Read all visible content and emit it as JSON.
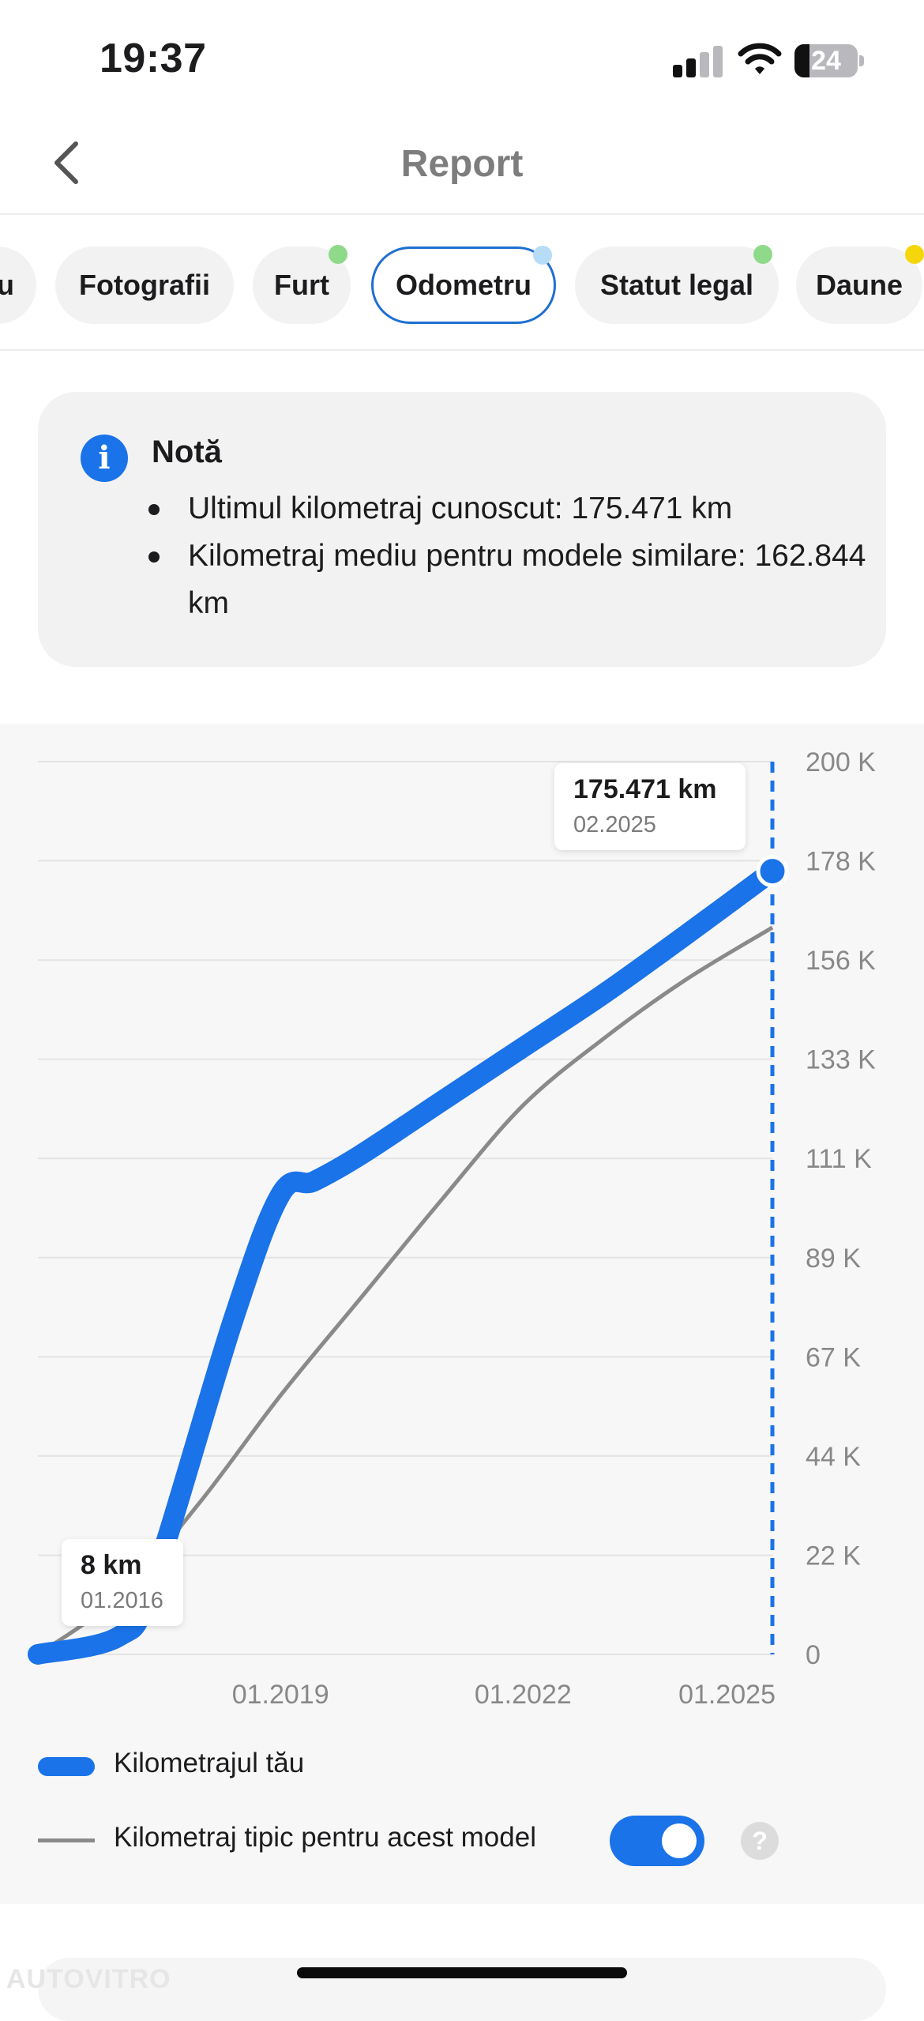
{
  "status_bar": {
    "time": "19:37",
    "battery_level": "24"
  },
  "nav": {
    "title": "Report",
    "back_icon": "chevron-left-icon"
  },
  "tabs": [
    {
      "label": "u",
      "dot_color": ""
    },
    {
      "label": "Fotografii",
      "dot_color": ""
    },
    {
      "label": "Furt",
      "dot_color": "#8fd98a"
    },
    {
      "label": "Odometru",
      "dot_color": "#b7dcf7",
      "active": true
    },
    {
      "label": "Statut legal",
      "dot_color": "#8fd98a"
    },
    {
      "label": "Daune",
      "dot_color": "#f5d60a"
    }
  ],
  "note": {
    "icon": "info-icon",
    "title": "Notă",
    "items": [
      "Ultimul kilometraj cunoscut: 175.471 km",
      "Kilometraj mediu pentru modele similare: 162.844 km"
    ]
  },
  "chart_data": {
    "type": "line",
    "x_ticks": [
      "01.2019",
      "01.2022",
      "01.2025"
    ],
    "y_ticks": [
      "0",
      "22 K",
      "44 K",
      "67 K",
      "89 K",
      "111 K",
      "133 K",
      "156 K",
      "178 K",
      "200 K"
    ],
    "ylim": [
      0,
      200000
    ],
    "grid": true,
    "series": [
      {
        "name": "Kilometrajul tău",
        "color": "#1a73e8",
        "points": [
          {
            "date": "01.2016",
            "km": 8
          },
          {
            "date": "01.2017",
            "km": 4000
          },
          {
            "date": "06.2017",
            "km": 16000
          },
          {
            "date": "06.2018",
            "km": 75000
          },
          {
            "date": "01.2019",
            "km": 103000
          },
          {
            "date": "06.2019",
            "km": 106000
          },
          {
            "date": "01.2020",
            "km": 112000
          },
          {
            "date": "01.2021",
            "km": 124000
          },
          {
            "date": "01.2022",
            "km": 136000
          },
          {
            "date": "01.2023",
            "km": 148000
          },
          {
            "date": "01.2024",
            "km": 161000
          },
          {
            "date": "02.2025",
            "km": 175471
          }
        ]
      },
      {
        "name": "Kilometraj tipic pentru acest model",
        "color": "#8a8a8a",
        "points": [
          {
            "date": "01.2016",
            "km": 0
          },
          {
            "date": "01.2017",
            "km": 13000
          },
          {
            "date": "01.2018",
            "km": 34000
          },
          {
            "date": "01.2019",
            "km": 58000
          },
          {
            "date": "01.2020",
            "km": 80000
          },
          {
            "date": "01.2021",
            "km": 102000
          },
          {
            "date": "01.2022",
            "km": 123000
          },
          {
            "date": "01.2023",
            "km": 138000
          },
          {
            "date": "01.2024",
            "km": 151000
          },
          {
            "date": "02.2025",
            "km": 162844
          }
        ]
      }
    ],
    "annotations": [
      {
        "value": "175.471 km",
        "date": "02.2025"
      },
      {
        "value": "8 km",
        "date": "01.2016"
      }
    ]
  },
  "legend": {
    "own_label": "Kilometrajul tău",
    "typical_label": "Kilometraj tipic pentru acest model",
    "typical_toggle_on": true,
    "help_icon": "question-icon",
    "help_glyph": "?"
  },
  "watermark": "AUTOVITRO"
}
